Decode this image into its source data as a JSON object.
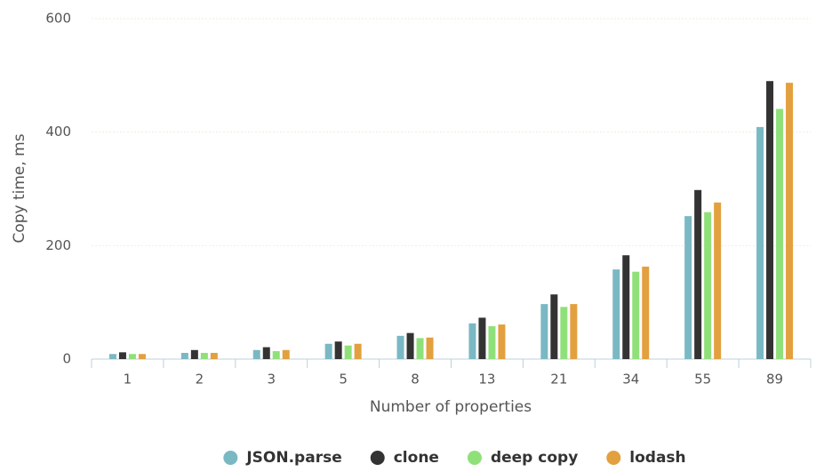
{
  "chart_data": {
    "type": "bar",
    "x_label": "Number of properties",
    "y_label": "Copy time, ms",
    "categories": [
      "1",
      "2",
      "3",
      "5",
      "8",
      "13",
      "21",
      "34",
      "55",
      "89"
    ],
    "series": [
      {
        "name": "JSON.parse",
        "color": "#7ab8c4",
        "values": [
          9,
          11,
          16,
          27,
          41,
          63,
          97,
          158,
          252,
          409
        ]
      },
      {
        "name": "clone",
        "color": "#333333",
        "values": [
          12,
          16,
          21,
          31,
          46,
          73,
          114,
          183,
          298,
          490
        ]
      },
      {
        "name": "deep copy",
        "color": "#90e07a",
        "values": [
          9,
          11,
          14,
          24,
          37,
          58,
          92,
          154,
          259,
          441
        ]
      },
      {
        "name": "lodash",
        "color": "#e3a03e",
        "values": [
          9,
          11,
          16,
          27,
          38,
          61,
          97,
          163,
          276,
          487
        ]
      }
    ],
    "ylim": [
      0,
      600
    ],
    "yticks": [
      0,
      200,
      400,
      600
    ],
    "grid": true,
    "legend": "bottom"
  }
}
